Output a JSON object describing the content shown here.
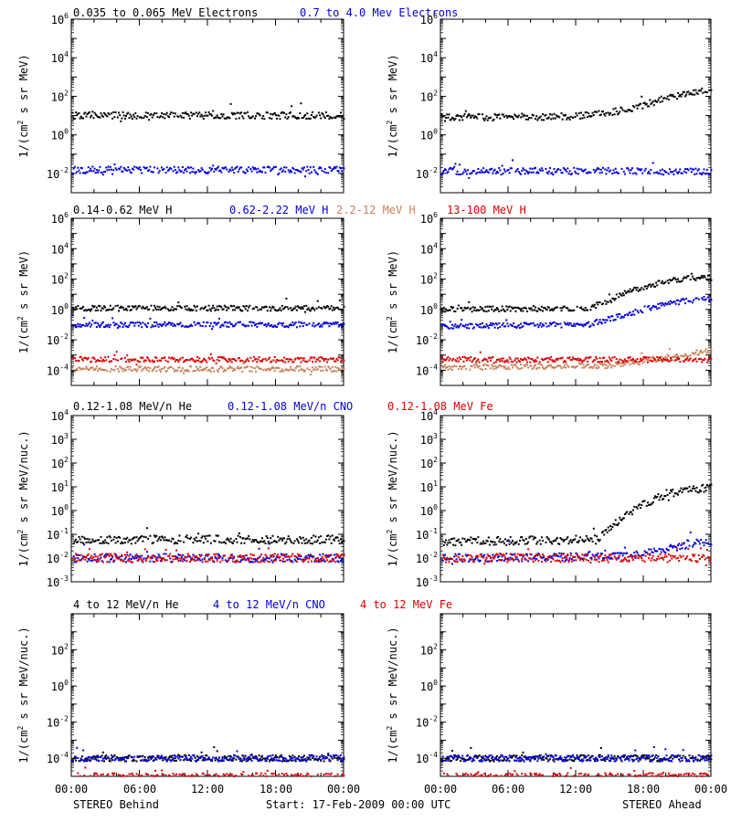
{
  "colors": {
    "black": "#000000",
    "blue": "#0000dd",
    "tan": "#c8825a",
    "red": "#dd0000"
  },
  "x_axis": {
    "ticks": [
      "00:00",
      "06:00",
      "12:00",
      "18:00",
      "00:00"
    ],
    "left_caption": "STEREO Behind",
    "center_caption": "Start: 17-Feb-2009 00:00 UTC",
    "right_caption": "STEREO Ahead"
  },
  "chart_data": [
    {
      "type": "scatter",
      "row": "electrons",
      "legend": [
        {
          "label": "0.035 to 0.065 MeV Electrons",
          "color": "black"
        },
        {
          "label": "0.7 to 4.0 Mev Electrons",
          "color": "blue"
        }
      ],
      "ylabel": "1/(cm2 s sr MeV)",
      "yscale": "log",
      "ylim": [
        0.001,
        1000000
      ],
      "yticks": [
        "10-2",
        "100",
        "102",
        "104",
        "106"
      ],
      "x_hours": [
        0,
        24
      ],
      "panels": [
        {
          "spacecraft": "STEREO Behind",
          "series": [
            {
              "color": "black",
              "profile": [
                [
                  0,
                  10
                ],
                [
                  24,
                  10
                ]
              ]
            },
            {
              "color": "blue",
              "profile": [
                [
                  0,
                  0.015
                ],
                [
                  24,
                  0.015
                ]
              ]
            }
          ]
        },
        {
          "spacecraft": "STEREO Ahead",
          "series": [
            {
              "color": "black",
              "profile": [
                [
                  0,
                  8
                ],
                [
                  12,
                  9
                ],
                [
                  15,
                  14
                ],
                [
                  18,
                  35
                ],
                [
                  20,
                  80
                ],
                [
                  22,
                  150
                ],
                [
                  24,
                  250
                ]
              ]
            },
            {
              "color": "blue",
              "profile": [
                [
                  0,
                  0.013
                ],
                [
                  24,
                  0.013
                ]
              ]
            }
          ]
        }
      ]
    },
    {
      "type": "scatter",
      "row": "protons",
      "legend": [
        {
          "label": "0.14-0.62 MeV H",
          "color": "black"
        },
        {
          "label": "0.62-2.22 MeV H",
          "color": "blue"
        },
        {
          "label": "2.2-12 MeV H",
          "color": "tan"
        },
        {
          "label": "13-100 MeV H",
          "color": "red"
        }
      ],
      "ylabel": "1/(cm2 s sr MeV)",
      "yscale": "log",
      "ylim": [
        1e-05,
        1000000
      ],
      "yticks": [
        "10-4",
        "10-2",
        "100",
        "102",
        "104",
        "106"
      ],
      "x_hours": [
        0,
        24
      ],
      "panels": [
        {
          "spacecraft": "STEREO Behind",
          "series": [
            {
              "color": "black",
              "profile": [
                [
                  0,
                  1.2
                ],
                [
                  24,
                  1.2
                ]
              ]
            },
            {
              "color": "blue",
              "profile": [
                [
                  0,
                  0.1
                ],
                [
                  24,
                  0.1
                ]
              ]
            },
            {
              "color": "tan",
              "profile": [
                [
                  0,
                  0.00012
                ],
                [
                  24,
                  0.00012
                ]
              ]
            },
            {
              "color": "red",
              "profile": [
                [
                  0,
                  0.0005
                ],
                [
                  24,
                  0.0005
                ]
              ]
            }
          ]
        },
        {
          "spacecraft": "STEREO Ahead",
          "series": [
            {
              "color": "black",
              "profile": [
                [
                  0,
                  1
                ],
                [
                  13,
                  1.2
                ],
                [
                  15,
                  4
                ],
                [
                  16,
                  10
                ],
                [
                  18,
                  30
                ],
                [
                  20,
                  70
                ],
                [
                  22,
                  120
                ],
                [
                  24,
                  110
                ]
              ]
            },
            {
              "color": "blue",
              "profile": [
                [
                  0,
                  0.08
                ],
                [
                  13,
                  0.1
                ],
                [
                  15,
                  0.25
                ],
                [
                  17,
                  0.6
                ],
                [
                  19,
                  1.5
                ],
                [
                  21,
                  3
                ],
                [
                  23,
                  5
                ],
                [
                  24,
                  4
                ]
              ]
            },
            {
              "color": "tan",
              "profile": [
                [
                  0,
                  0.00015
                ],
                [
                  15,
                  0.0002
                ],
                [
                  18,
                  0.0004
                ],
                [
                  21,
                  0.0009
                ],
                [
                  23,
                  0.0015
                ],
                [
                  24,
                  0.002
                ]
              ]
            },
            {
              "color": "red",
              "profile": [
                [
                  0,
                  0.0005
                ],
                [
                  24,
                  0.0005
                ]
              ]
            }
          ]
        }
      ]
    },
    {
      "type": "scatter",
      "row": "heavy-ions-low",
      "legend": [
        {
          "label": "0.12-1.08 MeV/n He",
          "color": "black"
        },
        {
          "label": "0.12-1.08 MeV/n CNO",
          "color": "blue"
        },
        {
          "label": "0.12-1.08 MeV Fe",
          "color": "red"
        }
      ],
      "ylabel": "1/(cm2 s sr MeV/nuc.)",
      "yscale": "log",
      "ylim": [
        0.001,
        10000
      ],
      "yticks": [
        "10-3",
        "10-2",
        "10-1",
        "100",
        "101",
        "102",
        "103",
        "104"
      ],
      "x_hours": [
        0,
        24
      ],
      "panels": [
        {
          "spacecraft": "STEREO Behind",
          "series": [
            {
              "color": "black",
              "profile": [
                [
                  0,
                  0.06
                ],
                [
                  24,
                  0.06
                ]
              ]
            },
            {
              "color": "blue",
              "profile": [
                [
                  0,
                  0.01
                ],
                [
                  24,
                  0.01
                ]
              ]
            },
            {
              "color": "red",
              "profile": [
                [
                  0,
                  0.01
                ],
                [
                  24,
                  0.01
                ]
              ]
            }
          ]
        },
        {
          "spacecraft": "STEREO Ahead",
          "series": [
            {
              "color": "black",
              "profile": [
                [
                  0,
                  0.05
                ],
                [
                  14,
                  0.06
                ],
                [
                  15.5,
                  0.3
                ],
                [
                  17,
                  1
                ],
                [
                  18.5,
                  2.5
                ],
                [
                  20,
                  5
                ],
                [
                  22,
                  7
                ],
                [
                  24,
                  10
                ]
              ]
            },
            {
              "color": "blue",
              "profile": [
                [
                  0,
                  0.01
                ],
                [
                  16,
                  0.012
                ],
                [
                  19,
                  0.02
                ],
                [
                  22,
                  0.04
                ],
                [
                  24,
                  0.05
                ]
              ]
            },
            {
              "color": "red",
              "profile": [
                [
                  0,
                  0.01
                ],
                [
                  24,
                  0.01
                ]
              ]
            }
          ]
        }
      ]
    },
    {
      "type": "scatter",
      "row": "heavy-ions-high",
      "legend": [
        {
          "label": "4 to 12 MeV/n He",
          "color": "black"
        },
        {
          "label": "4 to 12 MeV/n CNO",
          "color": "blue"
        },
        {
          "label": "4 to 12 MeV Fe",
          "color": "red"
        }
      ],
      "ylabel": "1/(cm2 s sr MeV/nuc.)",
      "yscale": "log",
      "ylim": [
        1e-05,
        10000
      ],
      "yticks": [
        "10-4",
        "10-2",
        "100",
        "102"
      ],
      "x_hours": [
        0,
        24
      ],
      "panels": [
        {
          "spacecraft": "STEREO Behind",
          "series": [
            {
              "color": "black",
              "profile": [
                [
                  0,
                  0.0001
                ],
                [
                  24,
                  0.0001
                ]
              ]
            },
            {
              "color": "blue",
              "profile": [
                [
                  0,
                  0.0001
                ],
                [
                  24,
                  0.0001
                ]
              ]
            },
            {
              "color": "red",
              "profile": [
                [
                  0,
                  1e-05
                ],
                [
                  24,
                  1e-05
                ]
              ]
            }
          ]
        },
        {
          "spacecraft": "STEREO Ahead",
          "series": [
            {
              "color": "black",
              "profile": [
                [
                  0,
                  0.0001
                ],
                [
                  24,
                  0.0001
                ]
              ]
            },
            {
              "color": "blue",
              "profile": [
                [
                  0,
                  0.0001
                ],
                [
                  24,
                  0.0001
                ]
              ]
            },
            {
              "color": "red",
              "profile": [
                [
                  0,
                  1e-05
                ],
                [
                  24,
                  1e-05
                ]
              ]
            }
          ]
        }
      ]
    }
  ]
}
